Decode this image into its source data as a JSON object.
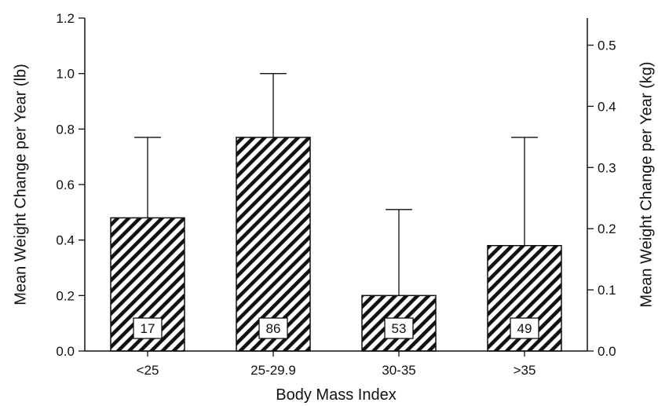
{
  "chart_data": {
    "type": "bar",
    "title": "",
    "xlabel": "Body Mass Index",
    "ylabel": "Mean Weight Change per Year (lb)",
    "ylabel_right": "Mean Weight Change per Year (kg)",
    "categories": [
      "<25",
      "25-29.9",
      "30-35",
      ">35"
    ],
    "values": [
      0.48,
      0.77,
      0.2,
      0.38
    ],
    "error_upper": [
      0.77,
      1.0,
      0.51,
      0.77
    ],
    "counts": [
      "17",
      "86",
      "53",
      "49"
    ],
    "ylim": [
      0,
      1.2
    ],
    "yticks": [
      "0.0",
      "0.2",
      "0.4",
      "0.6",
      "0.8",
      "1.0",
      "1.2"
    ],
    "ylim_right": [
      0,
      0.5443
    ],
    "yticks_right": [
      "0.0",
      "0.1",
      "0.2",
      "0.3",
      "0.4",
      "0.5"
    ],
    "bar_fill": "diagonal-hatch",
    "grid": false,
    "legend": "none"
  }
}
